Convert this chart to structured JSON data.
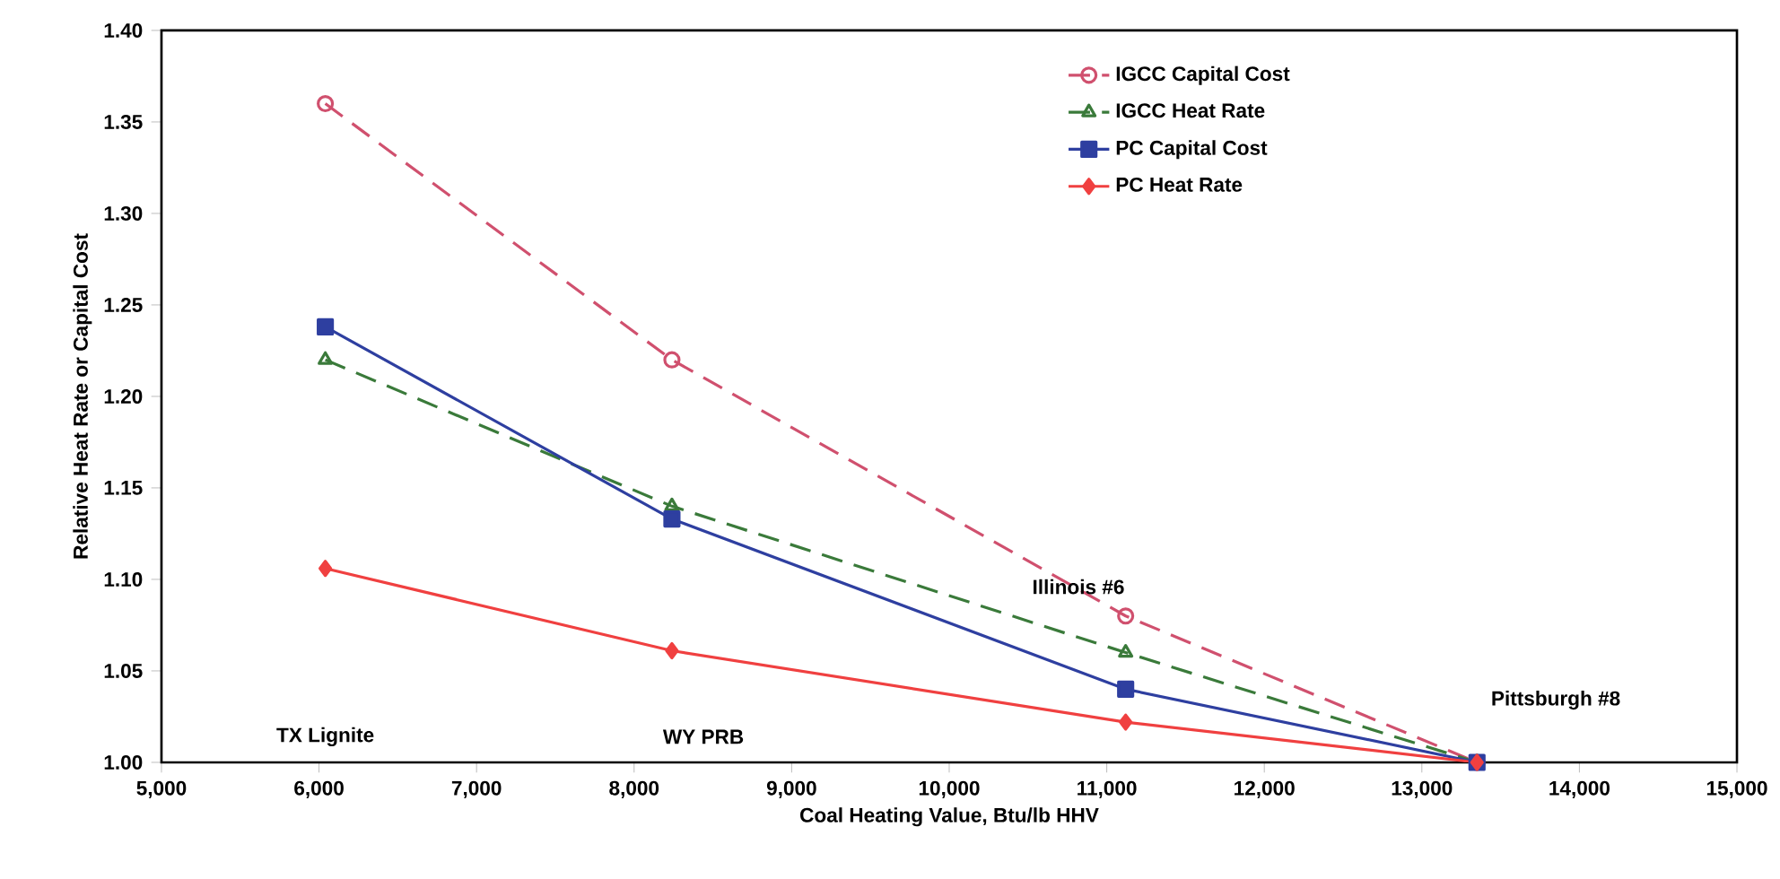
{
  "chart_data": {
    "type": "line",
    "xlabel": "Coal Heating Value, Btu/lb HHV",
    "ylabel": "Relative Heat Rate or Capital Cost",
    "x": [
      6040,
      8240,
      11120,
      13350
    ],
    "series": [
      {
        "name": "IGCC Capital Cost",
        "color": "#d0506e",
        "marker": "circle",
        "line_style": "dashed",
        "values": [
          1.36,
          1.22,
          1.08,
          1.0
        ]
      },
      {
        "name": "IGCC Heat Rate",
        "color": "#3a7a3a",
        "marker": "triangle",
        "line_style": "dashed",
        "values": [
          1.22,
          1.14,
          1.06,
          1.0
        ]
      },
      {
        "name": "PC Capital Cost",
        "color": "#2e3fa0",
        "marker": "square",
        "line_style": "solid",
        "values": [
          1.238,
          1.133,
          1.04,
          1.0
        ]
      },
      {
        "name": "PC Heat Rate",
        "color": "#f04040",
        "marker": "diamond",
        "line_style": "solid",
        "values": [
          1.106,
          1.061,
          1.022,
          1.0
        ]
      }
    ],
    "xlim": [
      5000,
      15000
    ],
    "ylim": [
      1.0,
      1.4
    ],
    "xticks": [
      {
        "value": 5000,
        "label": "5,000"
      },
      {
        "value": 6000,
        "label": "6,000"
      },
      {
        "value": 7000,
        "label": "7,000"
      },
      {
        "value": 8000,
        "label": "8,000"
      },
      {
        "value": 9000,
        "label": "9,000"
      },
      {
        "value": 10000,
        "label": "10,000"
      },
      {
        "value": 11000,
        "label": "11,000"
      },
      {
        "value": 12000,
        "label": "12,000"
      },
      {
        "value": 13000,
        "label": "13,000"
      },
      {
        "value": 14000,
        "label": "14,000"
      },
      {
        "value": 15000,
        "label": "15,000"
      }
    ],
    "yticks": [
      {
        "value": 1.0,
        "label": "1.00"
      },
      {
        "value": 1.05,
        "label": "1.05"
      },
      {
        "value": 1.1,
        "label": "1.10"
      },
      {
        "value": 1.15,
        "label": "1.15"
      },
      {
        "value": 1.2,
        "label": "1.20"
      },
      {
        "value": 1.25,
        "label": "1.25"
      },
      {
        "value": 1.3,
        "label": "1.30"
      },
      {
        "value": 1.35,
        "label": "1.35"
      },
      {
        "value": 1.4,
        "label": "1.40"
      }
    ],
    "annotations": [
      "TX Lignite",
      "WY PRB",
      "Illinois #6",
      "Pittsburgh #8"
    ],
    "legend": "top right",
    "grid": false
  }
}
